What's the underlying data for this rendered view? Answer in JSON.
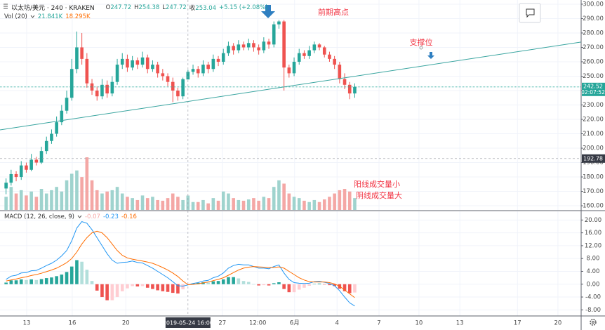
{
  "chart_data": {
    "type": "candlestick",
    "title": "以太坊/美元 · 240 · KRAKEN",
    "up_color": "#26a69a",
    "down_color": "#ef5350",
    "xlim": [
      -1.2,
      113.8
    ],
    "xticks": [
      {
        "value": 4.08,
        "label": "13"
      },
      {
        "value": 13.1,
        "label": "16"
      },
      {
        "value": 23.7,
        "label": "20"
      },
      {
        "value": 42.8,
        "label": "27"
      },
      {
        "value": 49.8,
        "label": "12:00"
      },
      {
        "value": 57.1,
        "label": "6月"
      },
      {
        "value": 65.5,
        "label": "4"
      },
      {
        "value": 73.8,
        "label": "7"
      },
      {
        "value": 81.7,
        "label": "10"
      },
      {
        "value": 89.8,
        "label": "13"
      },
      {
        "value": 101.2,
        "label": "17"
      },
      {
        "value": 109.2,
        "label": "20"
      }
    ],
    "ylim": [
      157.1,
      302.9
    ],
    "yticks": [
      {
        "value": 300,
        "label": "300.00"
      },
      {
        "value": 290,
        "label": "290.00"
      },
      {
        "value": 280,
        "label": "280.00"
      },
      {
        "value": 270,
        "label": "270.00"
      },
      {
        "value": 260,
        "label": "260.00"
      },
      {
        "value": 250,
        "label": "250.00"
      },
      {
        "value": 240,
        "label": "240.00"
      },
      {
        "value": 230,
        "label": "230.00"
      },
      {
        "value": 220,
        "label": "220.00"
      },
      {
        "value": 210,
        "label": "210.00"
      },
      {
        "value": 200,
        "label": "200.00"
      },
      {
        "value": 190,
        "label": "190.00"
      },
      {
        "value": 180,
        "label": "180.00"
      },
      {
        "value": 170,
        "label": "170.00"
      },
      {
        "value": 160,
        "label": "160.00"
      }
    ],
    "grid": true,
    "open": [
      172,
      176,
      182,
      180,
      188,
      185,
      192,
      190,
      198,
      205,
      210,
      218,
      226,
      235,
      255,
      270,
      262,
      245,
      240,
      236,
      244,
      238,
      246,
      258,
      262,
      256,
      261,
      258,
      263,
      255,
      258,
      252,
      250,
      246,
      240,
      236,
      247.72,
      253.04,
      255,
      252,
      258,
      255,
      262,
      260,
      266,
      271,
      268,
      272,
      270,
      273,
      270,
      268,
      274,
      272,
      286,
      288,
      256,
      252,
      260,
      266,
      264,
      268,
      272,
      270,
      265,
      262,
      258,
      248,
      244,
      238
    ],
    "high": [
      179,
      185,
      184,
      191,
      190,
      196,
      194,
      201,
      208,
      213,
      222,
      230,
      240,
      262,
      281,
      280,
      266,
      248,
      243,
      248,
      247,
      250,
      262,
      266,
      265,
      264,
      263,
      267,
      265,
      261,
      260,
      255,
      252,
      249,
      242,
      249,
      254.38,
      258,
      257,
      261,
      260,
      265,
      264,
      269,
      274,
      273,
      275,
      274,
      276,
      275,
      272,
      277,
      276,
      288,
      289,
      289,
      258,
      263,
      269,
      268,
      271,
      274,
      273,
      271,
      267,
      264,
      260,
      252,
      246,
      245
    ],
    "low": [
      168,
      174,
      177,
      178,
      183,
      184,
      188,
      189,
      196,
      203,
      208,
      216,
      224,
      233,
      252,
      258,
      242,
      237,
      233,
      234,
      235,
      236,
      244,
      255,
      253,
      254,
      255,
      256,
      252,
      253,
      249,
      247,
      243,
      232,
      233,
      234,
      247.72,
      251,
      249,
      250,
      252,
      253,
      257,
      258,
      264,
      265,
      266,
      268,
      268,
      267,
      265,
      266,
      269,
      270,
      283,
      240,
      249,
      250,
      258,
      262,
      262,
      266,
      268,
      263,
      260,
      255,
      245,
      241,
      234,
      235
    ],
    "close": [
      176,
      182,
      180,
      188,
      185,
      192,
      190,
      198,
      205,
      210,
      218,
      226,
      235,
      255,
      270,
      262,
      245,
      240,
      236,
      244,
      238,
      246,
      258,
      262,
      256,
      261,
      258,
      263,
      255,
      258,
      252,
      250,
      246,
      240,
      236,
      247.89,
      253.04,
      255,
      252,
      258,
      255,
      262,
      260,
      266,
      271,
      268,
      272,
      270,
      273,
      270,
      268,
      274,
      272,
      286,
      288,
      256,
      252,
      260,
      266,
      264,
      268,
      272,
      270,
      265,
      262,
      258,
      248,
      244,
      238,
      242.52
    ],
    "legend_labels": [
      "O",
      "H",
      "L",
      "收"
    ],
    "change_label": "+5.15 (+2.08%)",
    "crosshair": {
      "index": 36,
      "x_label": "2019-05-24 16:00",
      "price": 192.78
    },
    "last_price": {
      "value": 242.52,
      "countdown": "02:07:52",
      "color": "#26a69a"
    },
    "trendline": {
      "x": [
        -1.2,
        113.8
      ],
      "y": [
        212.7,
        273.7
      ],
      "color": "#3aa5a0"
    },
    "volume": {
      "name": "Vol (20)",
      "up_color": "#9fd3ce",
      "down_color": "#f4a7a5",
      "legend_value_labels": [
        "21.841K",
        "18.295K"
      ],
      "values": [
        20,
        35,
        25,
        30,
        22,
        28,
        20,
        32,
        25,
        30,
        35,
        28,
        45,
        55,
        60,
        50,
        80,
        45,
        30,
        25,
        28,
        30,
        35,
        25,
        20,
        18,
        15,
        22,
        18,
        20,
        15,
        14,
        18,
        25,
        20,
        15,
        21.841,
        12,
        12,
        15,
        10,
        18,
        14,
        28,
        25,
        18,
        15,
        14,
        16,
        18,
        14,
        20,
        18,
        35,
        45,
        40,
        25,
        20,
        18,
        14,
        12,
        15,
        12,
        16,
        20,
        25,
        30,
        32,
        28,
        18
      ]
    },
    "macd": {
      "title": "MACD (12, 26, close, 9)",
      "ylim": [
        -9.9,
        22.7
      ],
      "yticks": [
        {
          "value": 20,
          "label": "20.00"
        },
        {
          "value": 16,
          "label": "16.00"
        },
        {
          "value": 12,
          "label": "12.00"
        },
        {
          "value": 8,
          "label": "8.00"
        },
        {
          "value": 4,
          "label": "4.00"
        },
        {
          "value": 0,
          "label": "0.00"
        },
        {
          "value": -4,
          "label": "-4.00"
        },
        {
          "value": -8,
          "label": "-8.00"
        }
      ],
      "histogram": {
        "colors": [
          "#26a69a",
          "#b2dfdb",
          "#ef5350",
          "#ffcdd2"
        ],
        "legend_color": "#f7a9a7",
        "values": [
          0.5,
          1.2,
          1.2,
          1.5,
          1.3,
          1.5,
          1.3,
          1.6,
          1.9,
          2.1,
          2.5,
          3.0,
          3.8,
          5.5,
          7.5,
          7.0,
          4.5,
          1.0,
          -2.0,
          -4.0,
          -5.0,
          -5.0,
          -4.0,
          -2.2,
          -1.3,
          -0.6,
          -0.7,
          -0.6,
          -1.1,
          -1.5,
          -1.9,
          -2.2,
          -2.4,
          -2.7,
          -2.9,
          -1.6,
          -0.07,
          0.25,
          0.4,
          0.6,
          0.5,
          0.9,
          1.0,
          1.5,
          2.2,
          2.2,
          1.8,
          1.0,
          0.7,
          0,
          -0.4,
          -0.3,
          -0.4,
          0.3,
          0.6,
          -1.5,
          -2.5,
          -2.5,
          -1.7,
          -1.1,
          -0.5,
          0.1,
          0.2,
          -0.1,
          -0.3,
          -0.6,
          -1.4,
          -2.2,
          -2.8,
          -2.6
        ]
      },
      "macd": {
        "color": "#2196f3",
        "values": [
          1.5,
          2.5,
          2.8,
          3.5,
          3.6,
          4.2,
          4.3,
          5.0,
          5.8,
          6.5,
          7.5,
          8.8,
          10.5,
          13.5,
          17.5,
          19.5,
          19.0,
          17.0,
          14.5,
          12.0,
          9.5,
          7.5,
          6.5,
          6.8,
          6.9,
          7.2,
          6.8,
          6.6,
          5.8,
          5.0,
          4.0,
          3.0,
          2.0,
          0.8,
          -0.5,
          -0.6,
          -0.23,
          0.2,
          0.5,
          1.0,
          1.2,
          2.0,
          2.5,
          3.5,
          5.0,
          5.8,
          6.2,
          6.0,
          6.0,
          5.5,
          5.0,
          5.0,
          4.8,
          5.5,
          6.0,
          3.5,
          1.5,
          0.5,
          0.3,
          0.2,
          0.3,
          0.8,
          0.9,
          0.6,
          0.2,
          -0.5,
          -2.0,
          -4.0,
          -5.8,
          -6.8
        ]
      },
      "signal": {
        "color": "#ff6d00",
        "values": [
          1.0,
          1.3,
          1.6,
          2.0,
          2.3,
          2.7,
          3.0,
          3.4,
          3.9,
          4.4,
          5.0,
          5.8,
          6.7,
          8.0,
          10.0,
          12.5,
          14.5,
          16.0,
          16.5,
          16.0,
          14.5,
          12.5,
          10.5,
          9.0,
          8.2,
          7.8,
          7.5,
          7.2,
          6.9,
          6.5,
          5.9,
          5.2,
          4.4,
          3.5,
          2.4,
          1.0,
          -0.16,
          -0.05,
          0.1,
          0.4,
          0.7,
          1.1,
          1.5,
          2.0,
          2.8,
          3.6,
          4.4,
          5.0,
          5.3,
          5.5,
          5.4,
          5.3,
          5.2,
          5.2,
          5.4,
          5.0,
          4.0,
          3.0,
          2.0,
          1.3,
          0.8,
          0.7,
          0.7,
          0.7,
          0.5,
          0.1,
          -0.6,
          -1.8,
          -3.0,
          -4.2
        ]
      }
    },
    "annotation_color": "#f23645",
    "annotations": [
      "前期高点",
      "支撑位",
      "阳线成交量小",
      "阴线成交量大"
    ]
  }
}
